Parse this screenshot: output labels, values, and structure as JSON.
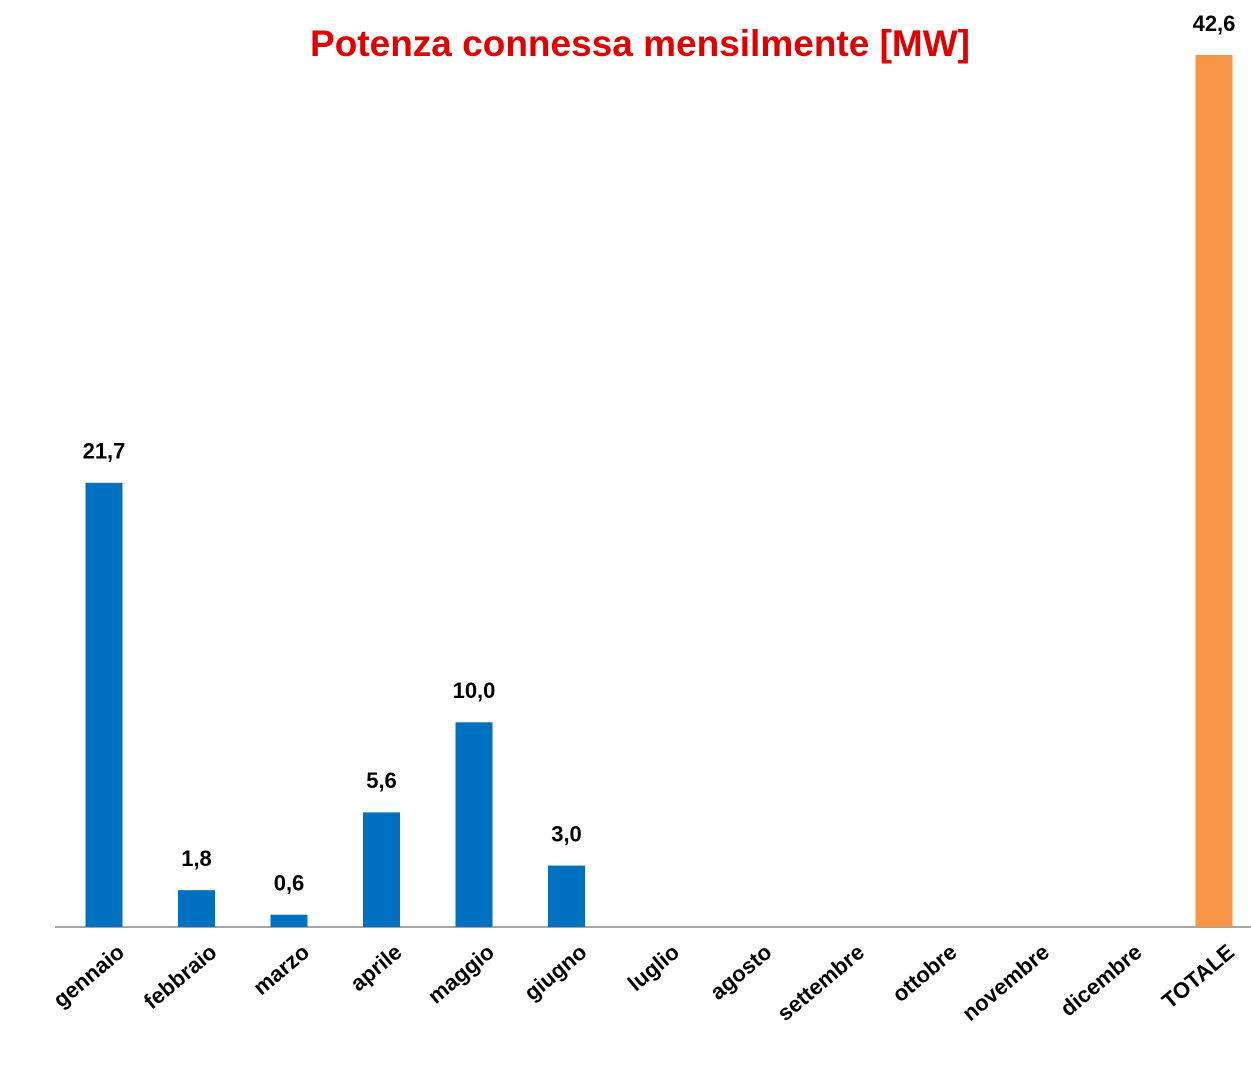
{
  "chart_data": {
    "type": "bar",
    "title": "Potenza connessa mensilmente [MW]",
    "categories": [
      "gennaio",
      "febbraio",
      "marzo",
      "aprile",
      "maggio",
      "giugno",
      "luglio",
      "agosto",
      "settembre",
      "ottobre",
      "novembre",
      "dicembre",
      "TOTALE"
    ],
    "values": [
      21.7,
      1.8,
      0.6,
      5.6,
      10.0,
      3.0,
      null,
      null,
      null,
      null,
      null,
      null,
      42.6
    ],
    "value_labels": [
      "21,7",
      "1,8",
      "0,6",
      "5,6",
      "10,0",
      "3,0",
      null,
      null,
      null,
      null,
      null,
      null,
      "42,6"
    ],
    "colors": [
      "#0070c0",
      "#0070c0",
      "#0070c0",
      "#0070c0",
      "#0070c0",
      "#0070c0",
      "#0070c0",
      "#0070c0",
      "#0070c0",
      "#0070c0",
      "#0070c0",
      "#0070c0",
      "#f79646"
    ],
    "title_color": "#e00000",
    "ylim": [
      0,
      42.6
    ]
  }
}
